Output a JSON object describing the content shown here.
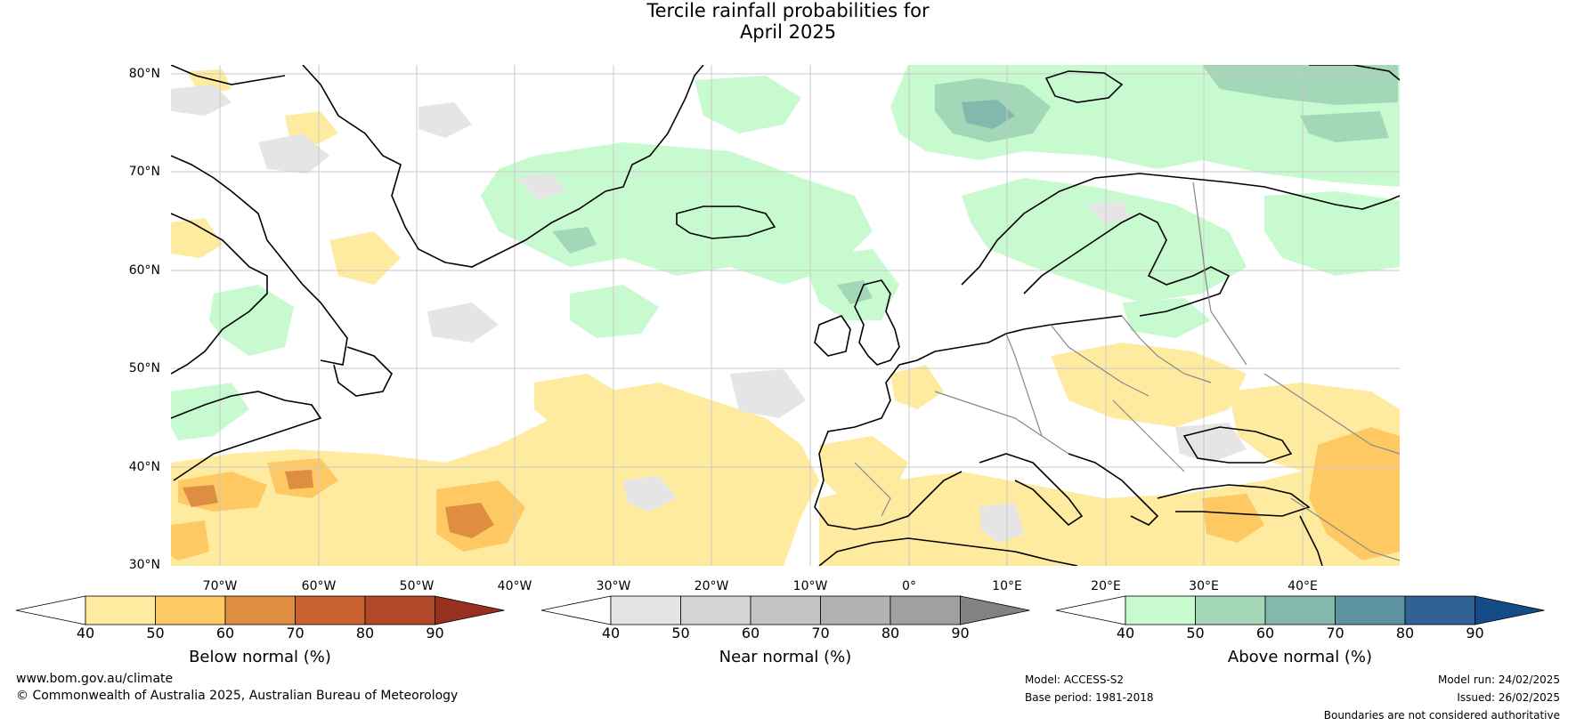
{
  "title_line1": "Tercile rainfall probabilities for",
  "title_line2": "April 2025",
  "lat_labels": [
    "80°N",
    "70°N",
    "60°N",
    "50°N",
    "40°N",
    "30°N"
  ],
  "lon_labels": [
    "70°W",
    "60°W",
    "50°W",
    "40°W",
    "30°W",
    "20°W",
    "10°W",
    "0°",
    "10°E",
    "20°E",
    "30°E",
    "40°E"
  ],
  "colorbars": [
    {
      "title": "Below normal (%)",
      "ticks": [
        "40",
        "50",
        "60",
        "70",
        "80",
        "90"
      ],
      "under_color": "#ffffff",
      "colors": [
        "#feeba0",
        "#fec963",
        "#df8d40",
        "#c9622f",
        "#b04a28"
      ],
      "over_color": "#97301f"
    },
    {
      "title": "Near normal (%)",
      "ticks": [
        "40",
        "50",
        "60",
        "70",
        "80",
        "90"
      ],
      "under_color": "#ffffff",
      "colors": [
        "#e5e5e5",
        "#d4d4d4",
        "#c4c4c4",
        "#b2b2b2",
        "#a0a0a0"
      ],
      "over_color": "#828282"
    },
    {
      "title": "Above normal (%)",
      "ticks": [
        "40",
        "50",
        "60",
        "70",
        "80",
        "90"
      ],
      "under_color": "#ffffff",
      "colors": [
        "#c7fbcf",
        "#a4d6b8",
        "#83b8ad",
        "#5b93a0",
        "#306293"
      ],
      "over_color": "#134c86"
    }
  ],
  "footer": {
    "website": "www.bom.gov.au/climate",
    "copyright": "© Commonwealth of Australia 2025, Australian Bureau of Meteorology",
    "model": "Model: ACCESS-S2",
    "base_period": "Base period: 1981-2018",
    "model_run": "Model run: 24/02/2025",
    "issued": "Issued: 26/02/2025",
    "disclaimer": "Boundaries are not considered authoritative"
  },
  "map_colors": {
    "background": "#ffffff",
    "grid": "#c8c8c8",
    "coastline": "#000000",
    "border": "#888888",
    "below_light": "#feeba0",
    "below_mid": "#fec963",
    "below_dark": "#df8d40",
    "near_light": "#e5e5e5",
    "above_light": "#c7fbcf",
    "above_mid": "#a4d6b8",
    "above_dark": "#83b8ad",
    "above_darker": "#5b93a0"
  }
}
